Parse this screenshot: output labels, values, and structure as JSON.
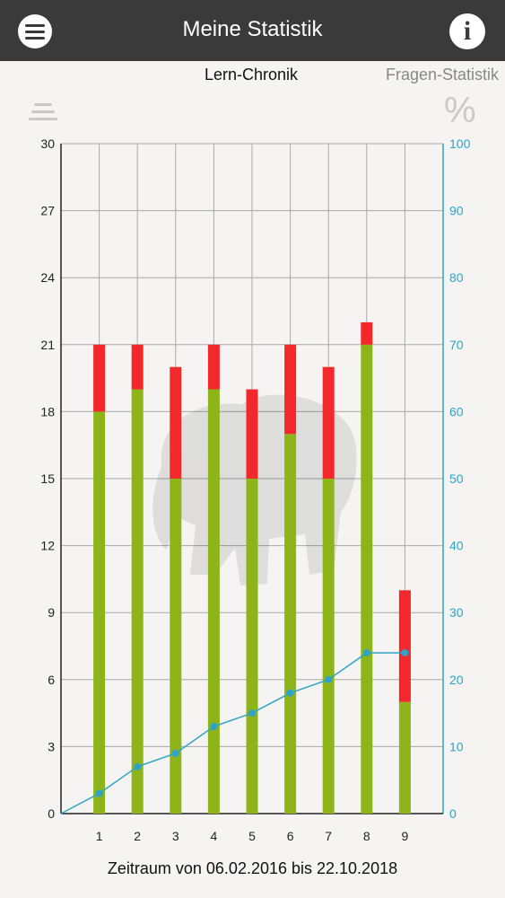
{
  "appbar": {
    "title": "Meine Statistik",
    "menu_icon": "hamburger-menu-icon",
    "info_icon": "info-icon",
    "info_glyph": "i"
  },
  "tabs": [
    {
      "label": "Lern-Chronik",
      "active": true
    },
    {
      "label": "Fragen-Statistik",
      "active": false
    }
  ],
  "toolbar": {
    "list_icon": "list-icon",
    "percent_icon": "percent-icon",
    "percent_glyph": "%"
  },
  "footer": {
    "range_text": "Zeitraum von 06.02.2016 bis 22.10.2018"
  },
  "colors": {
    "correct": "#8db51a",
    "wrong": "#f2282a",
    "line": "#2fa3c7",
    "appbar": "#3a3a3a"
  },
  "chart_data": {
    "type": "bar",
    "stacked": true,
    "categories": [
      "1",
      "2",
      "3",
      "4",
      "5",
      "6",
      "7",
      "8",
      "9"
    ],
    "series": [
      {
        "values": [
          18,
          19,
          15,
          19,
          15,
          17,
          15,
          21,
          5
        ]
      },
      {
        "values": [
          3,
          2,
          5,
          2,
          4,
          4,
          5,
          1,
          5
        ]
      }
    ],
    "line_series": {
      "axis": "right",
      "values": [
        3,
        7,
        9,
        13,
        15,
        18,
        20,
        24,
        24
      ]
    },
    "y_left": {
      "range": [
        0,
        30
      ],
      "ticks": [
        "0",
        "3",
        "6",
        "9",
        "12",
        "15",
        "18",
        "21",
        "24",
        "27",
        "30"
      ]
    },
    "y_right": {
      "range": [
        0,
        100
      ],
      "ticks": [
        "0",
        "10",
        "20",
        "30",
        "40",
        "50",
        "60",
        "70",
        "80",
        "90",
        "100"
      ]
    },
    "grid": true
  }
}
